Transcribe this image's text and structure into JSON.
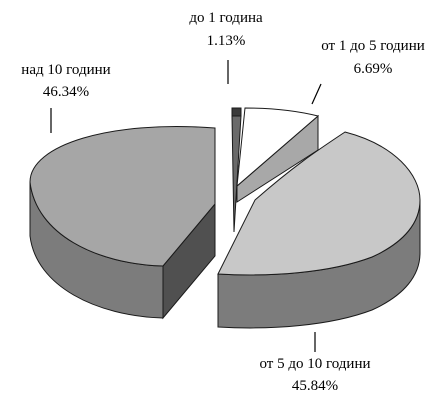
{
  "chart_data": {
    "type": "pie",
    "style": "3d-exploded",
    "title": "",
    "slices": [
      {
        "label": "до 1 година",
        "value": 1.13,
        "value_text": "1.13%",
        "color": "#6a6a6a"
      },
      {
        "label": "от 1 до 5 години",
        "value": 6.69,
        "value_text": "6.69%",
        "color": "#ffffff"
      },
      {
        "label": "от 5 до 10 години",
        "value": 45.84,
        "value_text": "45.84%",
        "color": "#c8c8c8"
      },
      {
        "label": "над 10 години",
        "value": 46.34,
        "value_text": "46.34%",
        "color": "#a6a6a6"
      }
    ]
  }
}
